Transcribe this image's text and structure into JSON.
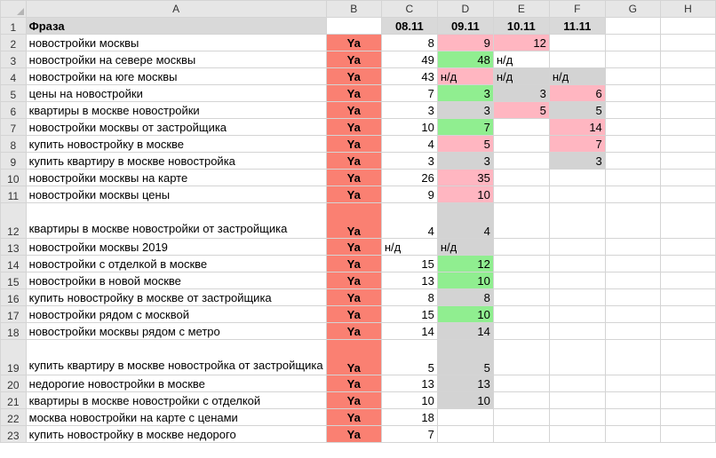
{
  "columns": [
    "A",
    "B",
    "C",
    "D",
    "E",
    "F",
    "G",
    "H"
  ],
  "header_row": {
    "row_number": "1",
    "a": "Фраза",
    "b": "",
    "c": "08.11",
    "d": "09.11",
    "e": "10.11",
    "f": "11.11",
    "g": "",
    "h": ""
  },
  "rows": [
    {
      "n": "2",
      "a": "новостройки москвы",
      "b": "Ya",
      "c": "8",
      "d": "9",
      "e": "12",
      "f": ""
    },
    {
      "n": "3",
      "a": "новостройки на севере москвы",
      "b": "Ya",
      "c": "49",
      "d": "48",
      "e": "н/д",
      "f": ""
    },
    {
      "n": "4",
      "a": "новостройки на юге москвы",
      "b": "Ya",
      "c": "43",
      "d": "н/д",
      "e": "н/д",
      "f": "н/д"
    },
    {
      "n": "5",
      "a": "цены на новостройки",
      "b": "Ya",
      "c": "7",
      "d": "3",
      "e": "3",
      "f": "6"
    },
    {
      "n": "6",
      "a": "квартиры в москве новостройки",
      "b": "Ya",
      "c": "3",
      "d": "3",
      "e": "5",
      "f": "5"
    },
    {
      "n": "7",
      "a": "новостройки москвы от застройщика",
      "b": "Ya",
      "c": "10",
      "d": "7",
      "e": "",
      "f": "14"
    },
    {
      "n": "8",
      "a": "купить новостройку в москве",
      "b": "Ya",
      "c": "4",
      "d": "5",
      "e": "",
      "f": "7"
    },
    {
      "n": "9",
      "a": "купить квартиру в москве новостройка",
      "b": "Ya",
      "c": "3",
      "d": "3",
      "e": "",
      "f": "3"
    },
    {
      "n": "10",
      "a": "новостройки москвы на карте",
      "b": "Ya",
      "c": "26",
      "d": "35",
      "e": "",
      "f": ""
    },
    {
      "n": "11",
      "a": "новостройки москвы цены",
      "b": "Ya",
      "c": "9",
      "d": "10",
      "e": "",
      "f": ""
    },
    {
      "n": "12",
      "a": "квартиры в москве новостройки от застройщика",
      "b": "Ya",
      "c": "4",
      "d": "4",
      "e": "",
      "f": ""
    },
    {
      "n": "13",
      "a": "новостройки москвы 2019",
      "b": "Ya",
      "c": "н/д",
      "d": "н/д",
      "e": "",
      "f": ""
    },
    {
      "n": "14",
      "a": "новостройки с отделкой в москве",
      "b": "Ya",
      "c": "15",
      "d": "12",
      "e": "",
      "f": ""
    },
    {
      "n": "15",
      "a": "новостройки в новой москве",
      "b": "Ya",
      "c": "13",
      "d": "10",
      "e": "",
      "f": ""
    },
    {
      "n": "16",
      "a": "купить новостройку в москве от застройщика",
      "b": "Ya",
      "c": "8",
      "d": "8",
      "e": "",
      "f": ""
    },
    {
      "n": "17",
      "a": "новостройки рядом с москвой",
      "b": "Ya",
      "c": "15",
      "d": "10",
      "e": "",
      "f": ""
    },
    {
      "n": "18",
      "a": "новостройки москвы рядом с метро",
      "b": "Ya",
      "c": "14",
      "d": "14",
      "e": "",
      "f": ""
    },
    {
      "n": "19",
      "a": "купить квартиру в москве новостройка от застройщика",
      "b": "Ya",
      "c": "5",
      "d": "5",
      "e": "",
      "f": ""
    },
    {
      "n": "20",
      "a": "недорогие новостройки в москве",
      "b": "Ya",
      "c": "13",
      "d": "13",
      "e": "",
      "f": ""
    },
    {
      "n": "21",
      "a": "квартиры в москве новостройки с отделкой",
      "b": "Ya",
      "c": "10",
      "d": "10",
      "e": "",
      "f": ""
    },
    {
      "n": "22",
      "a": "москва новостройки на карте с ценами",
      "b": "Ya",
      "c": "18",
      "d": "",
      "e": "",
      "f": ""
    },
    {
      "n": "23",
      "a": "купить новостройку в москве недорого",
      "b": "Ya",
      "c": "7",
      "d": "",
      "e": "",
      "f": ""
    }
  ],
  "colors": {
    "label_red": "#fa8072",
    "decrease_green": "#90ee90",
    "increase_pink": "#ffb6c1",
    "neutral_gray": "#d3d3d3",
    "header_gray": "#d9d9d9"
  }
}
